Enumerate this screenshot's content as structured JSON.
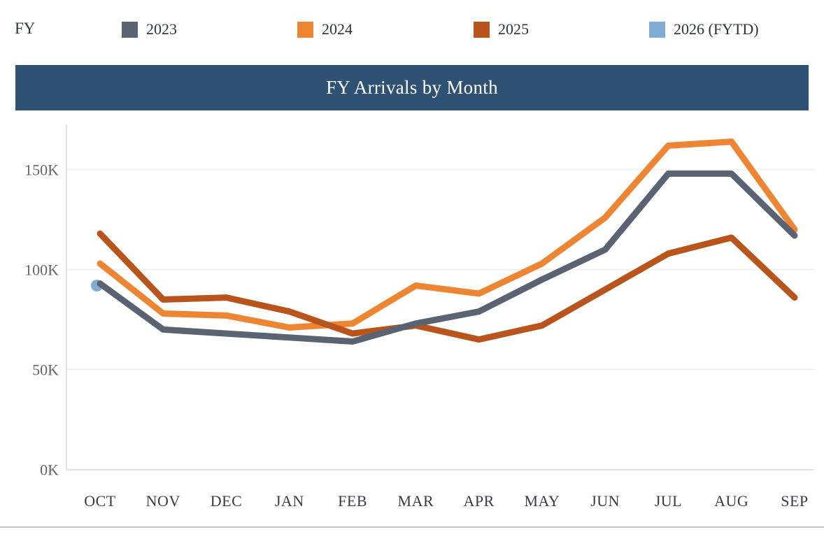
{
  "legend": {
    "label": "FY",
    "items": [
      {
        "label": "2023",
        "color": "#5a6372"
      },
      {
        "label": "2024",
        "color": "#ee8532"
      },
      {
        "label": "2025",
        "color": "#b9541d"
      },
      {
        "label": "2026 (FYTD)",
        "color": "#7fadd3"
      }
    ]
  },
  "title_bar": {
    "title": "FY Arrivals by Month",
    "background": "#2e5174",
    "text_color": "#ffffff"
  },
  "chart_data": {
    "type": "line",
    "title": "FY Arrivals by Month",
    "categories": [
      "OCT",
      "NOV",
      "DEC",
      "JAN",
      "FEB",
      "MAR",
      "APR",
      "MAY",
      "JUN",
      "JUL",
      "AUG",
      "SEP"
    ],
    "unit": "thousands of arrivals",
    "series": [
      {
        "name": "2023",
        "color": "#5a6372",
        "values": [
          93,
          70,
          68,
          66,
          64,
          73,
          79,
          95,
          110,
          148,
          148,
          117
        ]
      },
      {
        "name": "2024",
        "color": "#ee8532",
        "values": [
          103,
          78,
          77,
          71,
          73,
          92,
          88,
          103,
          126,
          162,
          164,
          120
        ]
      },
      {
        "name": "2025",
        "color": "#b9541d",
        "values": [
          118,
          85,
          86,
          79,
          68,
          72,
          65,
          72,
          90,
          108,
          116,
          86
        ]
      },
      {
        "name": "2026 (FYTD)",
        "color": "#7fadd3",
        "values": [
          92
        ],
        "marker_only": true
      }
    ],
    "y_ticks": [
      {
        "value": 0,
        "label": "0K"
      },
      {
        "value": 50,
        "label": "50K"
      },
      {
        "value": 100,
        "label": "100K"
      },
      {
        "value": 150,
        "label": "150K"
      }
    ],
    "ylim": [
      0,
      172
    ],
    "xlabel": "",
    "ylabel": "",
    "grid": true,
    "legend_position": "top",
    "colors": {
      "gridline": "#f1f1f1",
      "axis_line": "#e3e3e3",
      "y_tick_text": "#63666a",
      "x_tick_text": "#393c42"
    }
  }
}
